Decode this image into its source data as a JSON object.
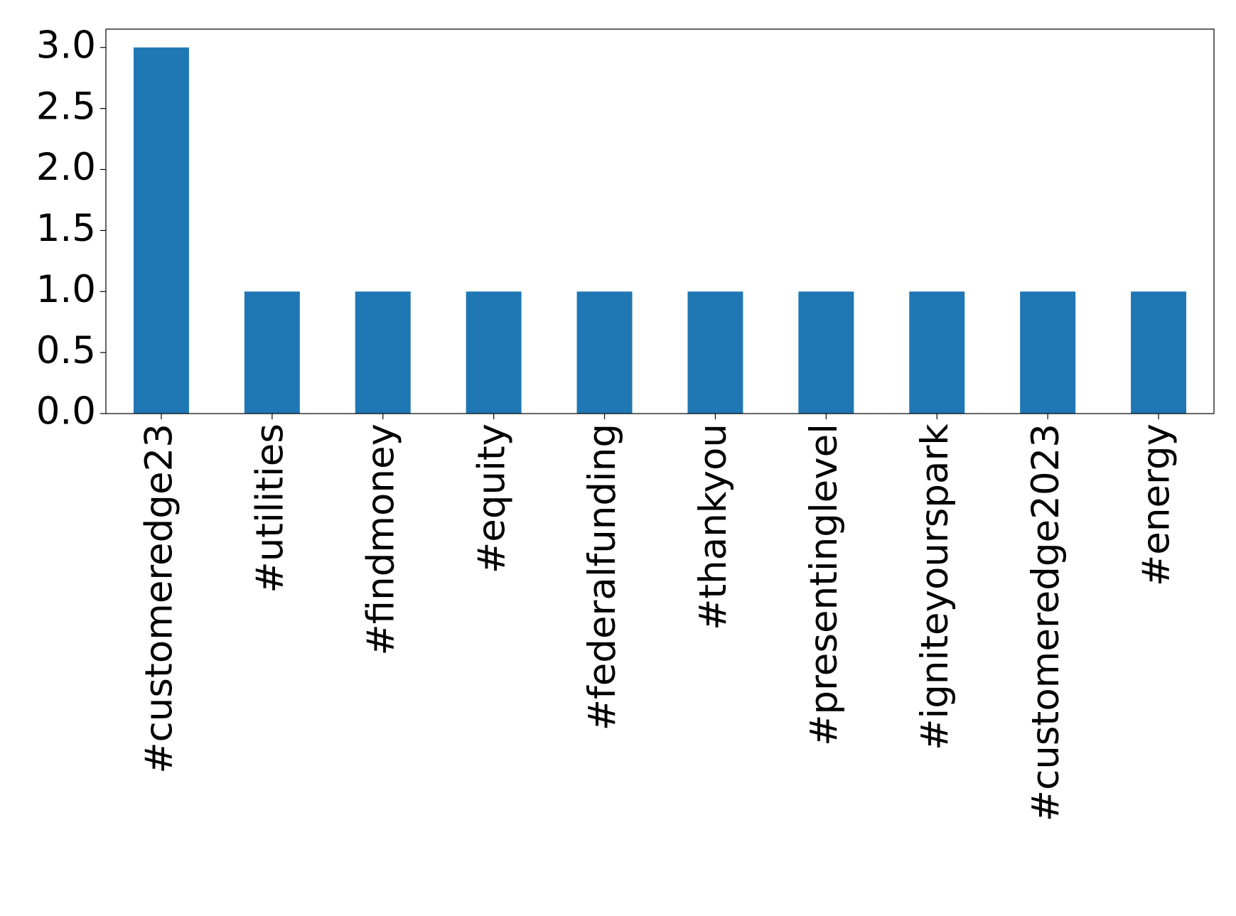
{
  "chart_data": {
    "type": "bar",
    "categories": [
      "#customeredge23",
      "#utilities",
      "#findmoney",
      "#equity",
      "#federalfunding",
      "#thankyou",
      "#presentinglevel",
      "#igniteyourspark",
      "#customeredge2023",
      "#energy"
    ],
    "values": [
      3,
      1,
      1,
      1,
      1,
      1,
      1,
      1,
      1,
      1
    ],
    "color": "#1f77b4",
    "ylim": [
      0,
      3.15
    ],
    "yticks": [
      {
        "value": 0,
        "label": "0.0"
      },
      {
        "value": 0.5,
        "label": "0.5"
      },
      {
        "value": 1,
        "label": "1.0"
      },
      {
        "value": 1.5,
        "label": "1.5"
      },
      {
        "value": 2,
        "label": "2.0"
      },
      {
        "value": 2.5,
        "label": "2.5"
      },
      {
        "value": 3,
        "label": "3.0"
      }
    ],
    "grid": false
  }
}
